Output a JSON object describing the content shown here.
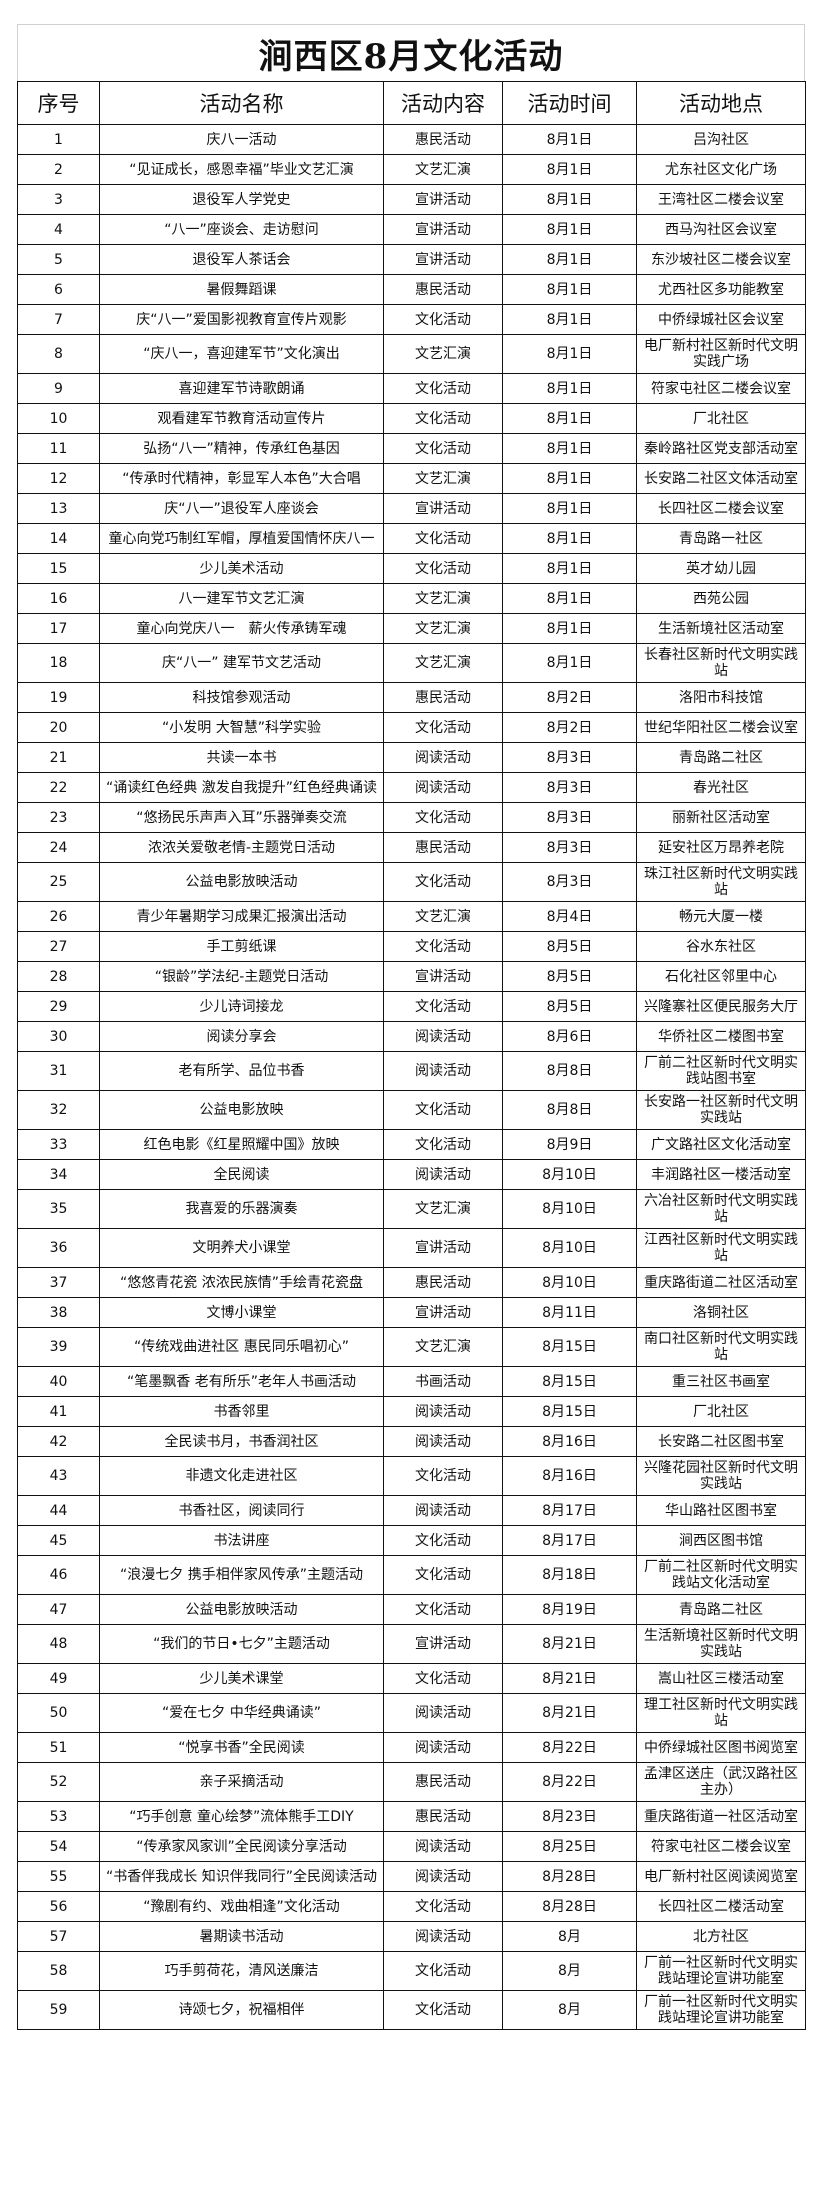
{
  "title": "涧西区8月文化活动",
  "headers": [
    "序号",
    "活动名称",
    "活动内容",
    "活动时间",
    "活动地点"
  ],
  "rows": [
    [
      "1",
      "庆八一活动",
      "惠民活动",
      "8月1日",
      "吕沟社区"
    ],
    [
      "2",
      "“见证成长，感恩幸福”毕业文艺汇演",
      "文艺汇演",
      "8月1日",
      "尤东社区文化广场"
    ],
    [
      "3",
      "退役军人学党史",
      "宣讲活动",
      "8月1日",
      "王湾社区二楼会议室"
    ],
    [
      "4",
      "“八一”座谈会、走访慰问",
      "宣讲活动",
      "8月1日",
      "西马沟社区会议室"
    ],
    [
      "5",
      "退役军人茶话会",
      "宣讲活动",
      "8月1日",
      "东沙坡社区二楼会议室"
    ],
    [
      "6",
      "暑假舞蹈课",
      "惠民活动",
      "8月1日",
      "尤西社区多功能教室"
    ],
    [
      "7",
      "庆“八一”爱国影视教育宣传片观影",
      "文化活动",
      "8月1日",
      "中侨绿城社区会议室"
    ],
    [
      "8",
      "“庆八一，喜迎建军节”文化演出",
      "文艺汇演",
      "8月1日",
      "电厂新村社区新时代文明实践广场"
    ],
    [
      "9",
      "喜迎建军节诗歌朗诵",
      "文化活动",
      "8月1日",
      "符家屯社区二楼会议室"
    ],
    [
      "10",
      "观看建军节教育活动宣传片",
      "文化活动",
      "8月1日",
      "厂北社区"
    ],
    [
      "11",
      "弘扬“八一”精神，传承红色基因",
      "文化活动",
      "8月1日",
      "秦岭路社区党支部活动室"
    ],
    [
      "12",
      "“传承时代精神，彰显军人本色”大合唱",
      "文艺汇演",
      "8月1日",
      "长安路二社区文体活动室"
    ],
    [
      "13",
      "庆“八一”退役军人座谈会",
      "宣讲活动",
      "8月1日",
      "长四社区二楼会议室"
    ],
    [
      "14",
      "童心向党巧制红军帽，厚植爱国情怀庆八一",
      "文化活动",
      "8月1日",
      "青岛路一社区"
    ],
    [
      "15",
      "少儿美术活动",
      "文化活动",
      "8月1日",
      "英才幼儿园"
    ],
    [
      "16",
      "八一建军节文艺汇演",
      "文艺汇演",
      "8月1日",
      "西苑公园"
    ],
    [
      "17",
      "童心向党庆八一　薪火传承铸军魂",
      "文艺汇演",
      "8月1日",
      "生活新境社区活动室"
    ],
    [
      "18",
      "庆“八一” 建军节文艺活动",
      "文艺汇演",
      "8月1日",
      "长春社区新时代文明实践站"
    ],
    [
      "19",
      "科技馆参观活动",
      "惠民活动",
      "8月2日",
      "洛阳市科技馆"
    ],
    [
      "20",
      "“小发明 大智慧”科学实验",
      "文化活动",
      "8月2日",
      "世纪华阳社区二楼会议室"
    ],
    [
      "21",
      "共读一本书",
      "阅读活动",
      "8月3日",
      "青岛路二社区"
    ],
    [
      "22",
      "“诵读红色经典 激发自我提升”红色经典诵读",
      "阅读活动",
      "8月3日",
      "春光社区"
    ],
    [
      "23",
      "“悠扬民乐声声入耳”乐器弹奏交流",
      "文化活动",
      "8月3日",
      "丽新社区活动室"
    ],
    [
      "24",
      "浓浓关爱敬老情-主题党日活动",
      "惠民活动",
      "8月3日",
      "延安社区万昂养老院"
    ],
    [
      "25",
      "公益电影放映活动",
      "文化活动",
      "8月3日",
      "珠江社区新时代文明实践站"
    ],
    [
      "26",
      "青少年暑期学习成果汇报演出活动",
      "文艺汇演",
      "8月4日",
      "畅元大厦一楼"
    ],
    [
      "27",
      "手工剪纸课",
      "文化活动",
      "8月5日",
      "谷水东社区"
    ],
    [
      "28",
      "“银龄”学法纪-主题党日活动",
      "宣讲活动",
      "8月5日",
      "石化社区邻里中心"
    ],
    [
      "29",
      "少儿诗词接龙",
      "文化活动",
      "8月5日",
      "兴隆寨社区便民服务大厅"
    ],
    [
      "30",
      "阅读分享会",
      "阅读活动",
      "8月6日",
      "华侨社区二楼图书室"
    ],
    [
      "31",
      "老有所学、品位书香",
      "阅读活动",
      "8月8日",
      "厂前二社区新时代文明实践站图书室"
    ],
    [
      "32",
      "公益电影放映",
      "文化活动",
      "8月8日",
      "长安路一社区新时代文明实践站"
    ],
    [
      "33",
      "红色电影《红星照耀中国》放映",
      "文化活动",
      "8月9日",
      "广文路社区文化活动室"
    ],
    [
      "34",
      "全民阅读",
      "阅读活动",
      "8月10日",
      "丰润路社区一楼活动室"
    ],
    [
      "35",
      "我喜爱的乐器演奏",
      "文艺汇演",
      "8月10日",
      "六冶社区新时代文明实践站"
    ],
    [
      "36",
      "文明养犬小课堂",
      "宣讲活动",
      "8月10日",
      "江西社区新时代文明实践站"
    ],
    [
      "37",
      "“悠悠青花瓷 浓浓民族情”手绘青花瓷盘",
      "惠民活动",
      "8月10日",
      "重庆路街道二社区活动室"
    ],
    [
      "38",
      "文博小课堂",
      "宣讲活动",
      "8月11日",
      "洛铜社区"
    ],
    [
      "39",
      "“传统戏曲进社区 惠民同乐唱初心”",
      "文艺汇演",
      "8月15日",
      "南口社区新时代文明实践站"
    ],
    [
      "40",
      "“笔墨飘香 老有所乐”老年人书画活动",
      "书画活动",
      "8月15日",
      "重三社区书画室"
    ],
    [
      "41",
      "书香邻里",
      "阅读活动",
      "8月15日",
      "厂北社区"
    ],
    [
      "42",
      "全民读书月，书香润社区",
      "阅读活动",
      "8月16日",
      "长安路二社区图书室"
    ],
    [
      "43",
      "非遗文化走进社区",
      "文化活动",
      "8月16日",
      "兴隆花园社区新时代文明实践站"
    ],
    [
      "44",
      "书香社区，阅读同行",
      "阅读活动",
      "8月17日",
      "华山路社区图书室"
    ],
    [
      "45",
      "书法讲座",
      "文化活动",
      "8月17日",
      "涧西区图书馆"
    ],
    [
      "46",
      "“浪漫七夕 携手相伴家风传承”主题活动",
      "文化活动",
      "8月18日",
      "厂前二社区新时代文明实践站文化活动室"
    ],
    [
      "47",
      "公益电影放映活动",
      "文化活动",
      "8月19日",
      "青岛路二社区"
    ],
    [
      "48",
      "“我们的节日•七夕”主题活动",
      "宣讲活动",
      "8月21日",
      "生活新境社区新时代文明实践站"
    ],
    [
      "49",
      "少儿美术课堂",
      "文化活动",
      "8月21日",
      "嵩山社区三楼活动室"
    ],
    [
      "50",
      "“爱在七夕 中华经典诵读”",
      "阅读活动",
      "8月21日",
      "理工社区新时代文明实践站"
    ],
    [
      "51",
      "“悦享书香”全民阅读",
      "阅读活动",
      "8月22日",
      "中侨绿城社区图书阅览室"
    ],
    [
      "52",
      "亲子采摘活动",
      "惠民活动",
      "8月22日",
      "孟津区送庄（武汉路社区主办）"
    ],
    [
      "53",
      "“巧手创意 童心绘梦”流体熊手工DIY",
      "惠民活动",
      "8月23日",
      "重庆路街道一社区活动室"
    ],
    [
      "54",
      "“传承家风家训”全民阅读分享活动",
      "阅读活动",
      "8月25日",
      "符家屯社区二楼会议室"
    ],
    [
      "55",
      "“书香伴我成长 知识伴我同行”全民阅读活动",
      "阅读活动",
      "8月28日",
      "电厂新村社区阅读阅览室"
    ],
    [
      "56",
      "“豫剧有约、戏曲相逢”文化活动",
      "文化活动",
      "8月28日",
      "长四社区二楼活动室"
    ],
    [
      "57",
      "暑期读书活动",
      "阅读活动",
      "8月",
      "北方社区"
    ],
    [
      "58",
      "巧手剪荷花，清风送廉洁",
      "文化活动",
      "8月",
      "厂前一社区新时代文明实践站理论宣讲功能室"
    ],
    [
      "59",
      "诗颂七夕，祝福相伴",
      "文化活动",
      "8月",
      "厂前一社区新时代文明实践站理论宣讲功能室"
    ]
  ]
}
